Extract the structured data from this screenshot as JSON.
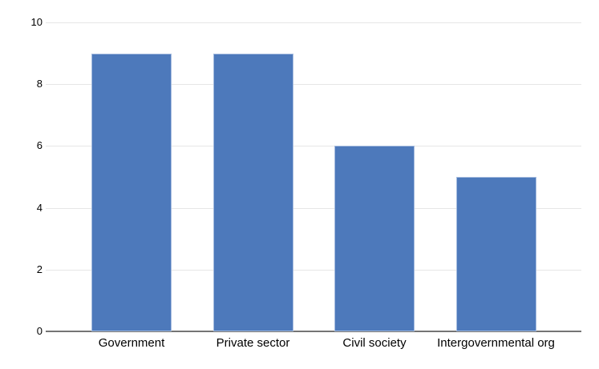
{
  "chart_data": {
    "type": "bar",
    "title": "",
    "xlabel": "",
    "ylabel": "",
    "categories": [
      "Government",
      "Private sector",
      "Civil society",
      "Intergovernmental org"
    ],
    "values": [
      9,
      9,
      6,
      5
    ],
    "ylim": [
      0,
      10
    ],
    "yticks": [
      0,
      2,
      4,
      6,
      8,
      10
    ],
    "grid": true,
    "legend": "none",
    "colors": {
      "bar_fill": "#4d79bb",
      "bar_border": "#a6bcdf",
      "gridline": "#e6e6e6",
      "axis_line": "#757575",
      "tick_label": "#000000",
      "category_label": "#000000",
      "background": "#ffffff"
    }
  }
}
